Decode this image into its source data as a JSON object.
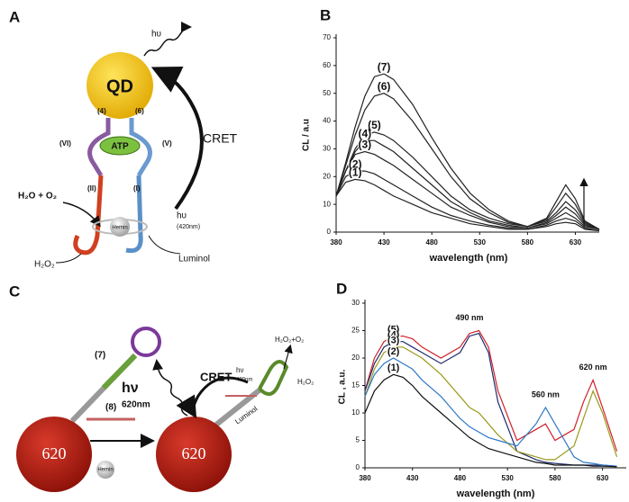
{
  "panel_a": {
    "label": "A",
    "hv_top": "hυ",
    "qd": "QD",
    "strand_4": "(4)",
    "strand_6": "(6)",
    "loop_vi": "(VI)",
    "atp": "ATP",
    "loop_v": "(V)",
    "cret": "CRET",
    "stem_ii": "(II)",
    "stem_i": "(I)",
    "products": "H₂O + O₂",
    "hv_emit": "hυ",
    "hv_wavelength": "(420nm)",
    "hemin": "Hemin",
    "substrate": "H₂O₂",
    "luminol": "Luminol"
  },
  "panel_c": {
    "label": "C",
    "hv": "hν",
    "hv_wavelength": "620nm",
    "cret": "CRET",
    "hv_small": "hν",
    "hv_small_wavelength": "420nm",
    "products": "H₂O₂+O₂",
    "substrate": "H₂O₂",
    "luminol": "Luminol",
    "probe_7": "(7)",
    "probe_8": "(8)",
    "qd_left": "620",
    "hemin": "Hemin",
    "qd_right": "620"
  },
  "chart_data": [
    {
      "type": "line",
      "panel_label": "B",
      "ylabel": "CL / a.u",
      "xlabel": "wavelength (nm)",
      "x": [
        380,
        390,
        400,
        410,
        420,
        430,
        440,
        460,
        480,
        500,
        520,
        540,
        560,
        580,
        600,
        610,
        620,
        630,
        640,
        655
      ],
      "xlim": [
        380,
        655
      ],
      "xticks": [
        380,
        430,
        480,
        530,
        580,
        630
      ],
      "ylim": [
        0,
        70
      ],
      "yticks": [
        0,
        10,
        20,
        30,
        40,
        50,
        60,
        70
      ],
      "series": [
        {
          "name": "(7)",
          "color": "#222222",
          "values": [
            13,
            25,
            38,
            49,
            56,
            57,
            55,
            46,
            34,
            23,
            14,
            8,
            4,
            2,
            5,
            11,
            17,
            12,
            4,
            1
          ]
        },
        {
          "name": "(6)",
          "color": "#222222",
          "values": [
            13,
            24,
            35,
            44,
            49,
            50,
            48,
            40,
            30,
            20,
            12,
            7,
            3.5,
            2,
            4.5,
            9,
            14,
            10,
            3.5,
            1
          ]
        },
        {
          "name": "(5)",
          "color": "#222222",
          "values": [
            13,
            22,
            30,
            35,
            36,
            35,
            33,
            27,
            20,
            13,
            8,
            5,
            3,
            2,
            4,
            7,
            11,
            8,
            3,
            1
          ]
        },
        {
          "name": "(4)",
          "color": "#222222",
          "values": [
            13,
            22,
            29,
            33,
            33,
            31,
            29,
            23,
            17,
            11,
            7,
            4,
            2.5,
            1.5,
            3.5,
            6,
            9,
            6.5,
            2.5,
            1
          ]
        },
        {
          "name": "(3)",
          "color": "#222222",
          "values": [
            13,
            22,
            28,
            29,
            28,
            26,
            24,
            19,
            14,
            9,
            6,
            3.5,
            2,
            1.5,
            3,
            5,
            7,
            5,
            2,
            1
          ]
        },
        {
          "name": "(2)",
          "color": "#222222",
          "values": [
            13,
            20,
            22,
            22,
            21,
            19,
            17,
            13,
            9,
            6,
            4,
            2.5,
            1.5,
            1,
            2.5,
            4,
            5,
            4,
            1.5,
            0.5
          ]
        },
        {
          "name": "(1)",
          "color": "#222222",
          "values": [
            13,
            18,
            19,
            18.5,
            17,
            15,
            13,
            10,
            7,
            5,
            3,
            2,
            1,
            1,
            2,
            3,
            3.5,
            3,
            1,
            0.5
          ]
        }
      ]
    },
    {
      "type": "line",
      "panel_label": "D",
      "ylabel": "CL , a.u.",
      "xlabel": "wavelength (nm)",
      "x": [
        380,
        390,
        400,
        410,
        420,
        430,
        440,
        460,
        480,
        490,
        500,
        510,
        520,
        540,
        560,
        570,
        580,
        600,
        610,
        620,
        630,
        645
      ],
      "xlim": [
        380,
        655
      ],
      "xticks": [
        380,
        430,
        480,
        530,
        580,
        630
      ],
      "ylim": [
        0,
        30
      ],
      "yticks": [
        0,
        5,
        10,
        15,
        20,
        25,
        30
      ],
      "annotations": [
        "490 nm",
        "560 nm",
        "620 nm"
      ],
      "series": [
        {
          "name": "(5)",
          "color": "#d0202a",
          "values": [
            14,
            20,
            23,
            24,
            24,
            23.5,
            22,
            20,
            22,
            24.5,
            25,
            22,
            14,
            5,
            7,
            8,
            5,
            7,
            12,
            16,
            11,
            3
          ]
        },
        {
          "name": "(4)",
          "color": "#1f2a6b",
          "values": [
            14,
            19,
            22,
            23,
            23,
            22,
            21,
            19,
            21,
            24,
            24.5,
            21,
            12,
            3,
            1.5,
            1,
            0.8,
            0.5,
            0.5,
            0.5,
            0.5,
            0.3
          ]
        },
        {
          "name": "(3)",
          "color": "#9a9a1c",
          "values": [
            13,
            18,
            21,
            22,
            22,
            21,
            20,
            17,
            13,
            11,
            10,
            8,
            6,
            3,
            2,
            1.5,
            1.5,
            4,
            9,
            14,
            10,
            2
          ]
        },
        {
          "name": "(2)",
          "color": "#2d78c8",
          "values": [
            13,
            17,
            19,
            20,
            19,
            18,
            16,
            13,
            9,
            7.5,
            6.5,
            5.5,
            5,
            4,
            8,
            11,
            8,
            2,
            1,
            0.8,
            0.5,
            0.3
          ]
        },
        {
          "name": "(1)",
          "color": "#111111",
          "values": [
            10,
            14,
            16,
            17,
            16.5,
            15,
            13,
            10,
            7,
            5.5,
            4.5,
            3.5,
            3,
            2,
            1,
            0.8,
            0.5,
            0.5,
            0.5,
            0.3,
            0.3,
            0.2
          ]
        }
      ]
    }
  ]
}
